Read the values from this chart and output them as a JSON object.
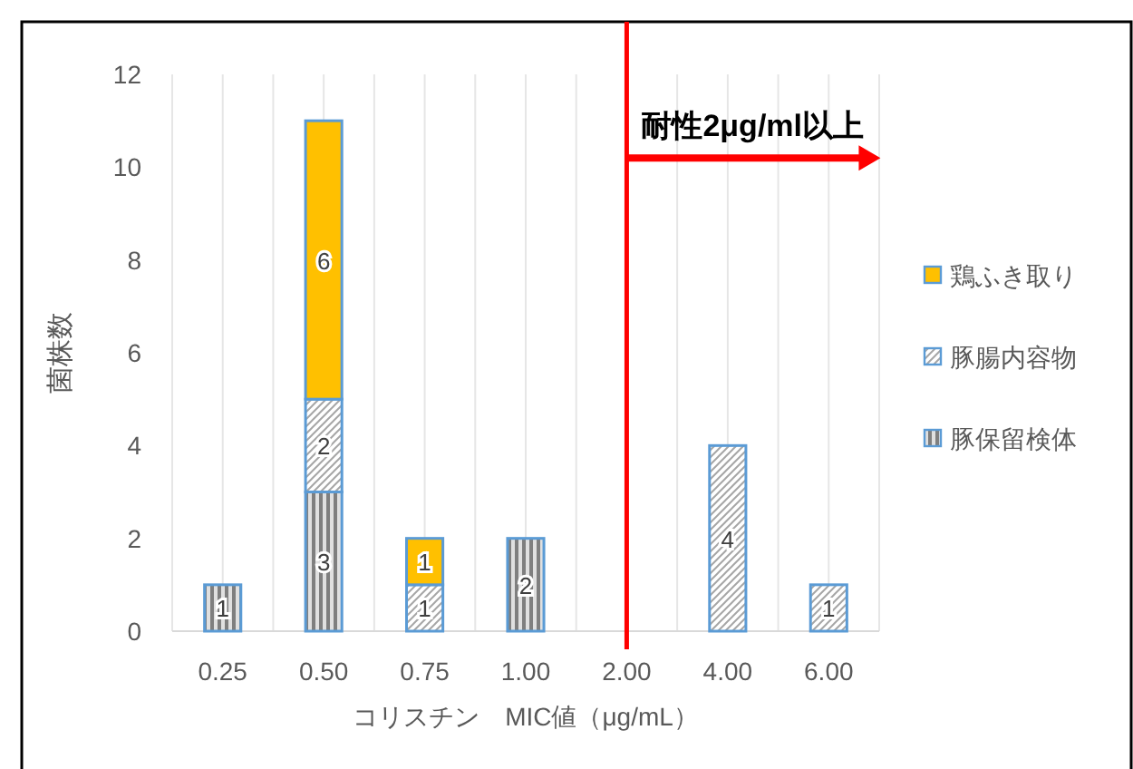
{
  "chart_data": {
    "type": "bar",
    "stacked": true,
    "xlabel": "コリスチン　MIC値（μg/mL）",
    "ylabel": "菌株数",
    "categories": [
      "0.25",
      "0.50",
      "0.75",
      "1.00",
      "2.00",
      "4.00",
      "6.00"
    ],
    "series": [
      {
        "name": "豚保留検体",
        "color": "#5b9bd5",
        "values": [
          1,
          3,
          null,
          2,
          null,
          null,
          null
        ]
      },
      {
        "name": "豚腸内容物",
        "color": "#5b9bd5",
        "values": [
          null,
          2,
          1,
          null,
          null,
          4,
          1
        ]
      },
      {
        "name": "鶏ふき取り",
        "color": "#ffc000",
        "values": [
          null,
          6,
          1,
          null,
          null,
          null,
          null
        ]
      }
    ],
    "ylim": [
      0,
      12
    ],
    "yticks": [
      0,
      2,
      4,
      6,
      8,
      10,
      12
    ],
    "grid": "x",
    "legend": "right",
    "data_labels": true,
    "ref_lines": [
      {
        "axis": "x",
        "value": "2.00",
        "label": "耐性2μg/ml以上",
        "color": "#ff0000"
      }
    ]
  }
}
